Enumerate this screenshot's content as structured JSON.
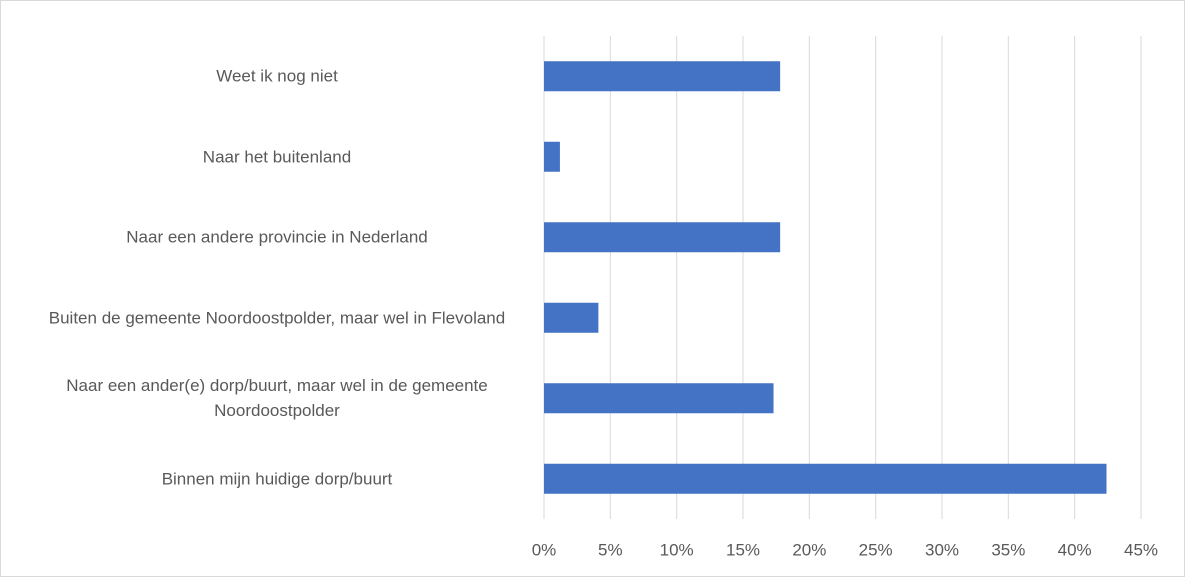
{
  "chart_data": {
    "type": "barh",
    "categories": [
      "Weet ik nog niet",
      "Naar het buitenland",
      "Naar een andere provincie in Nederland",
      "Buiten de gemeente Noordoostpolder, maar wel in Flevoland",
      "Naar een ander(e) dorp/buurt, maar wel in de gemeente Noordoostpolder",
      "Binnen mijn huidige dorp/buurt"
    ],
    "values": [
      17.8,
      1.2,
      17.8,
      4.1,
      17.3,
      42.4
    ],
    "color": "#4472c4",
    "xlim": [
      0,
      45
    ],
    "xticks": [
      {
        "value": 0,
        "label": "0%"
      },
      {
        "value": 5,
        "label": "5%"
      },
      {
        "value": 10,
        "label": "10%"
      },
      {
        "value": 15,
        "label": "15%"
      },
      {
        "value": 20,
        "label": "20%"
      },
      {
        "value": 25,
        "label": "25%"
      },
      {
        "value": 30,
        "label": "30%"
      },
      {
        "value": 35,
        "label": "35%"
      },
      {
        "value": 40,
        "label": "40%"
      },
      {
        "value": 45,
        "label": "45%"
      }
    ],
    "grid": true
  }
}
